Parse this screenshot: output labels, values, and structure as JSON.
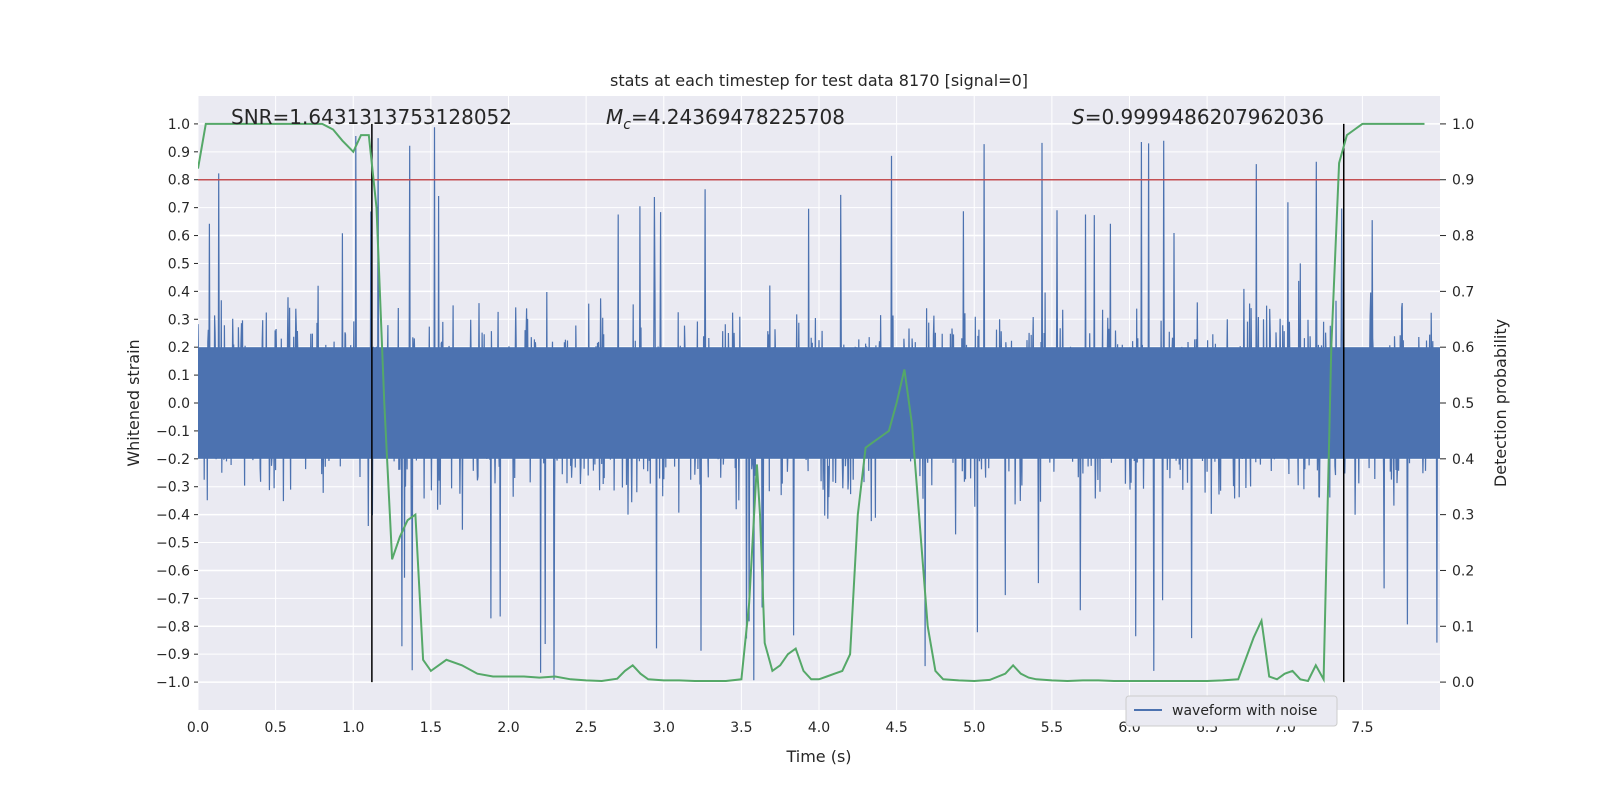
{
  "chart_data": {
    "type": "line",
    "title": "stats at each timestep for test data 8170 [signal=0]",
    "xlabel": "Time (s)",
    "ylabel_left": "Whitened strain",
    "ylabel_right": "Detection probability",
    "xlim": [
      0.0,
      8.0
    ],
    "ylim_left": [
      -1.1,
      1.1
    ],
    "ylim_right": [
      -0.05,
      1.05
    ],
    "xticks": [
      "0.0",
      "0.5",
      "1.0",
      "1.5",
      "2.0",
      "2.5",
      "3.0",
      "3.5",
      "4.0",
      "4.5",
      "5.0",
      "5.5",
      "6.0",
      "6.5",
      "7.0",
      "7.5"
    ],
    "yticks_left": [
      "-1.0",
      "-0.9",
      "-0.8",
      "-0.7",
      "-0.6",
      "-0.5",
      "-0.4",
      "-0.3",
      "-0.2",
      "-0.1",
      "0.0",
      "0.1",
      "0.2",
      "0.3",
      "0.4",
      "0.5",
      "0.6",
      "0.7",
      "0.8",
      "0.9",
      "1.0"
    ],
    "yticks_right": [
      "0.0",
      "0.1",
      "0.2",
      "0.3",
      "0.4",
      "0.5",
      "0.6",
      "0.7",
      "0.8",
      "0.9",
      "1.0"
    ],
    "grid": true,
    "legend": {
      "entries": [
        "waveform with noise"
      ],
      "placement": "lower-right"
    },
    "annotations": {
      "snr": "SNR=1.6431313753128052",
      "mc_symbol": "M",
      "mc_sub": "c",
      "mc_value": "=4.24369478225708",
      "s_symbol": "S",
      "s_value": "=0.9999486207962036"
    },
    "colors": {
      "waveform": "#4c72b0",
      "probability": "#55a868",
      "threshold": "#c44e52",
      "vlines": "#000000",
      "axes_bg": "#eaeaf2",
      "grid": "#ffffff"
    },
    "threshold_line": {
      "axis": "right",
      "value": 0.9
    },
    "vertical_lines": [
      1.12,
      7.38
    ],
    "waveform": {
      "name": "waveform with noise",
      "t_end": 8.0,
      "typical_amplitude": 0.4,
      "peak_amplitude": 1.0
    },
    "detection_probability": {
      "x": [
        0.0,
        0.05,
        0.1,
        0.2,
        0.3,
        0.4,
        0.5,
        0.6,
        0.7,
        0.8,
        0.87,
        0.93,
        1.0,
        1.05,
        1.1,
        1.15,
        1.2,
        1.25,
        1.3,
        1.35,
        1.4,
        1.45,
        1.5,
        1.6,
        1.7,
        1.8,
        1.9,
        2.0,
        2.1,
        2.2,
        2.3,
        2.4,
        2.5,
        2.6,
        2.7,
        2.75,
        2.8,
        2.85,
        2.9,
        3.0,
        3.1,
        3.2,
        3.3,
        3.4,
        3.5,
        3.55,
        3.6,
        3.62,
        3.65,
        3.7,
        3.75,
        3.8,
        3.85,
        3.9,
        3.95,
        4.0,
        4.05,
        4.1,
        4.15,
        4.2,
        4.25,
        4.3,
        4.35,
        4.4,
        4.45,
        4.5,
        4.55,
        4.6,
        4.65,
        4.7,
        4.75,
        4.8,
        4.9,
        5.0,
        5.1,
        5.2,
        5.25,
        5.3,
        5.35,
        5.4,
        5.5,
        5.6,
        5.7,
        5.8,
        5.9,
        6.0,
        6.1,
        6.2,
        6.3,
        6.4,
        6.5,
        6.6,
        6.7,
        6.8,
        6.85,
        6.9,
        6.95,
        7.0,
        7.05,
        7.1,
        7.15,
        7.2,
        7.25,
        7.3,
        7.35,
        7.4,
        7.45,
        7.5,
        7.55,
        7.6,
        7.7,
        7.8,
        7.9
      ],
      "y": [
        0.92,
        1.0,
        1.0,
        1.0,
        1.0,
        1.0,
        1.0,
        1.0,
        1.0,
        1.0,
        0.99,
        0.97,
        0.95,
        0.98,
        0.98,
        0.85,
        0.5,
        0.22,
        0.26,
        0.29,
        0.3,
        0.04,
        0.02,
        0.04,
        0.03,
        0.015,
        0.01,
        0.01,
        0.01,
        0.008,
        0.01,
        0.005,
        0.003,
        0.002,
        0.006,
        0.02,
        0.03,
        0.015,
        0.005,
        0.003,
        0.003,
        0.002,
        0.002,
        0.002,
        0.005,
        0.14,
        0.39,
        0.3,
        0.07,
        0.02,
        0.03,
        0.05,
        0.06,
        0.02,
        0.005,
        0.005,
        0.01,
        0.015,
        0.02,
        0.05,
        0.3,
        0.42,
        0.43,
        0.44,
        0.45,
        0.5,
        0.56,
        0.46,
        0.28,
        0.1,
        0.02,
        0.005,
        0.003,
        0.002,
        0.004,
        0.015,
        0.03,
        0.015,
        0.008,
        0.005,
        0.003,
        0.002,
        0.003,
        0.003,
        0.002,
        0.002,
        0.002,
        0.002,
        0.002,
        0.002,
        0.002,
        0.003,
        0.005,
        0.08,
        0.11,
        0.01,
        0.005,
        0.015,
        0.02,
        0.005,
        0.002,
        0.03,
        0.005,
        0.6,
        0.93,
        0.98,
        0.99,
        1.0,
        1.0,
        1.0,
        1.0,
        1.0,
        1.0
      ]
    }
  }
}
